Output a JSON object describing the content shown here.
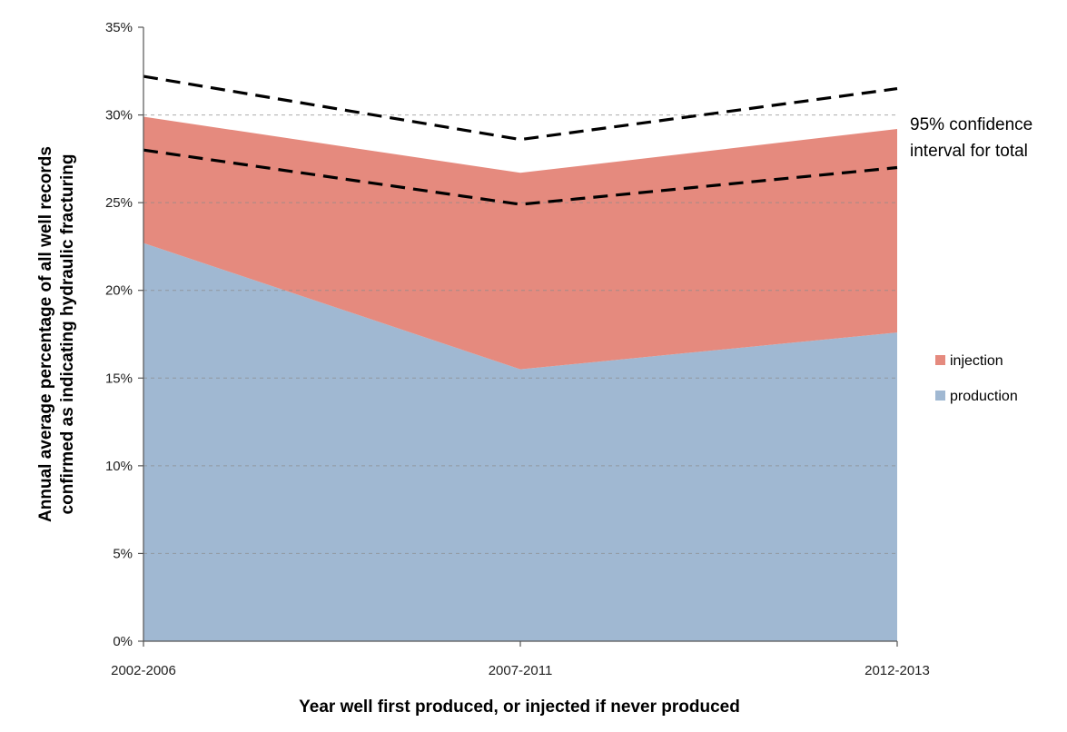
{
  "chart_data": {
    "type": "area",
    "stacked": true,
    "categories": [
      "2002-2006",
      "2007-2011",
      "2012-2013"
    ],
    "series": [
      {
        "name": "production",
        "values": [
          22.7,
          15.5,
          17.6
        ],
        "color": "#a0b8d2"
      },
      {
        "name": "injection",
        "values": [
          7.2,
          11.2,
          11.6
        ],
        "color": "#e58a7e"
      }
    ],
    "confidence_interval": {
      "label": "95% confidence interval for total",
      "upper": [
        32.2,
        28.6,
        31.5
      ],
      "lower": [
        28.0,
        24.9,
        27.0
      ],
      "style": "dashed"
    },
    "ylim": [
      0,
      35
    ],
    "yticks": [
      0,
      5,
      10,
      15,
      20,
      25,
      30,
      35
    ],
    "ytick_labels": [
      "0%",
      "5%",
      "10%",
      "15%",
      "20%",
      "25%",
      "30%",
      "35%"
    ],
    "xlabel": "Year well first produced, or injected if never produced",
    "ylabel": [
      "Annual average percentage of all well records",
      "confirmed as indicating hydraulic fracturing"
    ],
    "annotation": [
      "95% confidence",
      "interval for total"
    ],
    "grid": true,
    "legend_position": "right",
    "legend": [
      "injection",
      "production"
    ]
  }
}
